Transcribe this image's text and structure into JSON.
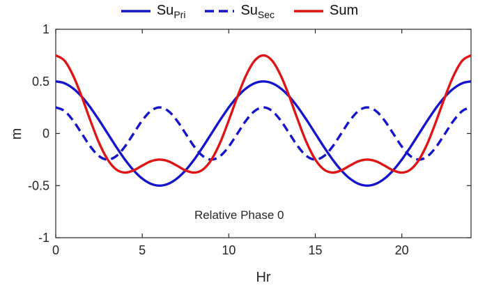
{
  "chart_data": {
    "type": "line",
    "title": "",
    "xlabel": "Hr",
    "ylabel": "m",
    "xlim": [
      0,
      24
    ],
    "ylim": [
      -1,
      1
    ],
    "grid": false,
    "legend_position": "top-center-outside",
    "axis_color": "#262626",
    "background": "#ffffff",
    "xticks": [
      {
        "v": 0,
        "label": "0"
      },
      {
        "v": 5,
        "label": "5"
      },
      {
        "v": 10,
        "label": "10"
      },
      {
        "v": 15,
        "label": "15"
      },
      {
        "v": 20,
        "label": "20"
      }
    ],
    "yticks": [
      {
        "v": -1,
        "label": "-1"
      },
      {
        "v": -0.5,
        "label": "-0.5"
      },
      {
        "v": 0,
        "label": "0"
      },
      {
        "v": 0.5,
        "label": "0.5"
      },
      {
        "v": 1,
        "label": "1"
      }
    ],
    "annotation": {
      "text": "Relative Phase 0",
      "x": 10.6,
      "y": -0.82
    },
    "x": [
      0,
      0.5,
      1,
      1.5,
      2,
      2.5,
      3,
      3.5,
      4,
      4.5,
      5,
      5.5,
      6,
      6.5,
      7,
      7.5,
      8,
      8.5,
      9,
      9.5,
      10,
      10.5,
      11,
      11.5,
      12,
      12.5,
      13,
      13.5,
      14,
      14.5,
      15,
      15.5,
      16,
      16.5,
      17,
      17.5,
      18,
      18.5,
      19,
      19.5,
      20,
      20.5,
      21,
      21.5,
      22,
      22.5,
      23,
      23.5,
      24
    ],
    "series": [
      {
        "name": "Su_Pri",
        "label_main": "Su",
        "label_sub": "Pri",
        "color": "#1414cc",
        "style": "solid",
        "line_width": 3.4,
        "amplitude": 0.5,
        "period_hr": 12,
        "values": [
          0.5,
          0.483,
          0.433,
          0.354,
          0.25,
          0.129,
          0,
          -0.129,
          -0.25,
          -0.354,
          -0.433,
          -0.483,
          -0.5,
          -0.483,
          -0.433,
          -0.354,
          -0.25,
          -0.129,
          0,
          0.129,
          0.25,
          0.354,
          0.433,
          0.483,
          0.5,
          0.483,
          0.433,
          0.354,
          0.25,
          0.129,
          0,
          -0.129,
          -0.25,
          -0.354,
          -0.433,
          -0.483,
          -0.5,
          -0.483,
          -0.433,
          -0.354,
          -0.25,
          -0.129,
          0,
          0.129,
          0.25,
          0.354,
          0.433,
          0.483,
          0.5
        ]
      },
      {
        "name": "Su_Sec",
        "label_main": "Su",
        "label_sub": "Sec",
        "color": "#1414cc",
        "style": "dashed",
        "line_width": 3.4,
        "amplitude": 0.25,
        "period_hr": 6,
        "values": [
          0.25,
          0.217,
          0.125,
          0,
          -0.125,
          -0.217,
          -0.25,
          -0.217,
          -0.125,
          0,
          0.125,
          0.217,
          0.25,
          0.217,
          0.125,
          0,
          -0.125,
          -0.217,
          -0.25,
          -0.217,
          -0.125,
          0,
          0.125,
          0.217,
          0.25,
          0.217,
          0.125,
          0,
          -0.125,
          -0.217,
          -0.25,
          -0.217,
          -0.125,
          0,
          0.125,
          0.217,
          0.25,
          0.217,
          0.125,
          0,
          -0.125,
          -0.217,
          -0.25,
          -0.217,
          -0.125,
          0,
          0.125,
          0.217,
          0.25
        ]
      },
      {
        "name": "Sum",
        "label_main": "Sum",
        "label_sub": "",
        "color": "#e01414",
        "style": "solid",
        "line_width": 3.4,
        "values": [
          0.75,
          0.7,
          0.558,
          0.354,
          0.125,
          -0.088,
          -0.25,
          -0.346,
          -0.375,
          -0.354,
          -0.308,
          -0.266,
          -0.25,
          -0.266,
          -0.308,
          -0.354,
          -0.375,
          -0.346,
          -0.25,
          -0.088,
          0.125,
          0.354,
          0.558,
          0.7,
          0.75,
          0.7,
          0.558,
          0.354,
          0.125,
          -0.088,
          -0.25,
          -0.346,
          -0.375,
          -0.354,
          -0.308,
          -0.266,
          -0.25,
          -0.266,
          -0.308,
          -0.354,
          -0.375,
          -0.346,
          -0.25,
          -0.088,
          0.125,
          0.354,
          0.558,
          0.7,
          0.75
        ]
      }
    ]
  }
}
